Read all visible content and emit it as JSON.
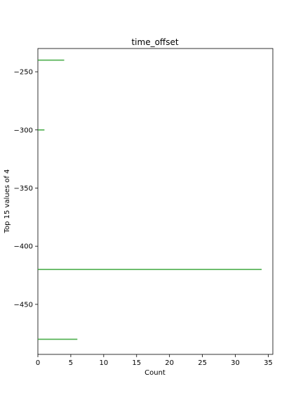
{
  "chart_data": {
    "type": "bar",
    "orientation": "horizontal",
    "title": "time_offset",
    "xlabel": "Count",
    "ylabel": "Top 15 values of 4",
    "xlim": [
      0,
      35.7
    ],
    "ylim": [
      -493,
      -230
    ],
    "xticks": [
      0,
      5,
      10,
      15,
      20,
      25,
      30,
      35
    ],
    "yticks": [
      -250,
      -300,
      -350,
      -400,
      -450
    ],
    "xtick_labels": [
      "0",
      "5",
      "10",
      "15",
      "20",
      "25",
      "30",
      "35"
    ],
    "ytick_labels": [
      "−250",
      "−300",
      "−350",
      "−400",
      "−450"
    ],
    "bar_color": "#2ca02c",
    "categories": [
      -240,
      -300,
      -420,
      -480
    ],
    "values": [
      4,
      1,
      34,
      6
    ],
    "grid": false,
    "legend": "none"
  }
}
